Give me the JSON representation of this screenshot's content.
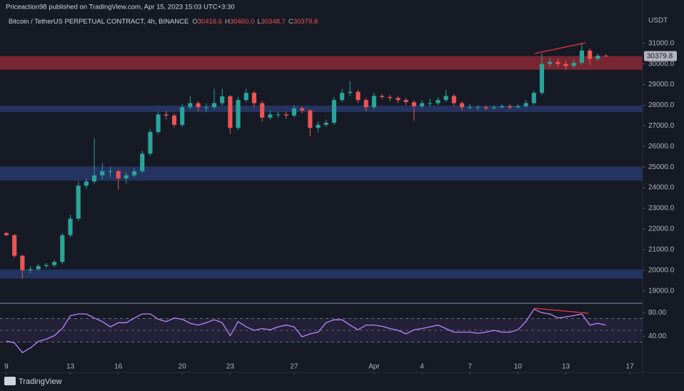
{
  "header": {
    "published": "Priceaction98 published on TradingView.com, Apr 15, 2023 15:03 UTC+3:30",
    "symbol": "Bitcoin / TetherUS PERPETUAL CONTRACT, 4h, BINANCE",
    "ohlc": [
      {
        "label": "O",
        "value": "30416.6"
      },
      {
        "label": "H",
        "value": "30460.0"
      },
      {
        "label": "L",
        "value": "30348.7"
      },
      {
        "label": "C",
        "value": "30379.8"
      }
    ]
  },
  "branding": "TradingView",
  "chart_data": [
    {
      "type": "candlestick",
      "axis_unit": "USDT",
      "up_color": "#26a69a",
      "down_color": "#ef5350",
      "xlim": [
        -0.4,
        39.8
      ],
      "xticks": [
        {
          "value": 0,
          "label": "9"
        },
        {
          "value": 4,
          "label": "13"
        },
        {
          "value": 7,
          "label": "16"
        },
        {
          "value": 11,
          "label": "20"
        },
        {
          "value": 14,
          "label": "23"
        },
        {
          "value": 18,
          "label": "27"
        },
        {
          "value": 23,
          "label": "Apr"
        },
        {
          "value": 26,
          "label": "4"
        },
        {
          "value": 29,
          "label": "7"
        },
        {
          "value": 32,
          "label": "10"
        },
        {
          "value": 35,
          "label": "13"
        },
        {
          "value": 39,
          "label": "17"
        }
      ],
      "ylim": [
        18400,
        33100
      ],
      "yticks": [
        {
          "value": 19000,
          "label": "19000.0"
        },
        {
          "value": 20000,
          "label": "20000.0"
        },
        {
          "value": 21000,
          "label": "21000.0"
        },
        {
          "value": 22000,
          "label": "22000.0"
        },
        {
          "value": 23000,
          "label": "23000.0"
        },
        {
          "value": 24000,
          "label": "24000.0"
        },
        {
          "value": 25000,
          "label": "25000.0"
        },
        {
          "value": 26000,
          "label": "26000.0"
        },
        {
          "value": 27000,
          "label": "27000.0"
        },
        {
          "value": 28000,
          "label": "28000.0"
        },
        {
          "value": 29000,
          "label": "29000.0"
        },
        {
          "value": 30000,
          "label": "30000.0"
        },
        {
          "value": 31000,
          "label": "31000.0"
        }
      ],
      "last_price": 30379.8,
      "zones": [
        {
          "low": 29720,
          "high": 30380,
          "color": "#8a2a35"
        },
        {
          "low": 27670,
          "high": 27980,
          "color": "#27386a"
        },
        {
          "low": 24340,
          "high": 25030,
          "color": "#27386a"
        },
        {
          "low": 19590,
          "high": 20040,
          "color": "#27386a"
        }
      ],
      "x": [
        0,
        0.5,
        1,
        1.5,
        2,
        2.5,
        3,
        3.5,
        4,
        4.5,
        5,
        5.5,
        6,
        6.5,
        7,
        7.5,
        8,
        8.5,
        9,
        9.5,
        10,
        10.5,
        11,
        11.5,
        12,
        12.5,
        13,
        13.5,
        14,
        14.5,
        15,
        15.5,
        16,
        16.5,
        17,
        17.5,
        18,
        18.5,
        19,
        19.5,
        20,
        20.5,
        21,
        21.5,
        22,
        22.5,
        23,
        23.5,
        24,
        24.5,
        25,
        25.5,
        26,
        26.5,
        27,
        27.5,
        28,
        28.5,
        29,
        29.5,
        30,
        30.5,
        31,
        31.5,
        32,
        32.5,
        33,
        33.5,
        34,
        34.5,
        35,
        35.5,
        36,
        36.5,
        37,
        37.5
      ],
      "open": [
        21800,
        21700,
        20700,
        20000,
        20050,
        20200,
        20250,
        20400,
        21700,
        22500,
        24100,
        24300,
        24600,
        24800,
        24800,
        24450,
        24600,
        24800,
        25650,
        26700,
        27550,
        27500,
        27050,
        27900,
        28100,
        27900,
        27900,
        28100,
        28430,
        26900,
        28250,
        28600,
        28100,
        27400,
        27550,
        27550,
        27500,
        27850,
        27750,
        26900,
        27050,
        27150,
        28250,
        28600,
        28650,
        28250,
        27900,
        28450,
        28400,
        28350,
        28250,
        28150,
        27950,
        28100,
        28100,
        28250,
        28450,
        28100,
        27900,
        27900,
        27900,
        27850,
        27900,
        27950,
        27900,
        27950,
        28100,
        28600,
        30000,
        30100,
        30000,
        29900,
        30050,
        30650,
        30250,
        30400
      ],
      "high": [
        21850,
        21750,
        20750,
        20200,
        20300,
        20350,
        20500,
        21800,
        22700,
        24300,
        24450,
        26400,
        25200,
        25000,
        24900,
        24750,
        24950,
        25800,
        26850,
        27700,
        27750,
        27600,
        28050,
        28450,
        28200,
        28100,
        28800,
        28800,
        28500,
        28400,
        28800,
        28700,
        28200,
        27750,
        27700,
        27700,
        28000,
        27950,
        27800,
        27200,
        27300,
        28400,
        28800,
        29150,
        28750,
        28350,
        28600,
        28550,
        28500,
        28450,
        28350,
        28250,
        28250,
        28300,
        28400,
        28750,
        28550,
        28200,
        28050,
        28000,
        28000,
        28000,
        28050,
        28050,
        28050,
        28250,
        28700,
        30500,
        30300,
        30250,
        30150,
        30200,
        31000,
        30750,
        30500,
        30460
      ],
      "low": [
        21650,
        20600,
        19600,
        19850,
        19950,
        20100,
        20150,
        20300,
        21600,
        22400,
        23950,
        24200,
        24400,
        24500,
        23900,
        24200,
        24500,
        24700,
        25550,
        26600,
        27300,
        26900,
        26950,
        27800,
        27700,
        27650,
        27800,
        28000,
        26600,
        26800,
        28150,
        27900,
        27200,
        27300,
        27400,
        27350,
        27400,
        27600,
        26500,
        26700,
        26950,
        27050,
        28150,
        28450,
        28100,
        27700,
        27800,
        28300,
        28200,
        28100,
        28000,
        27250,
        27850,
        27950,
        28000,
        28150,
        27950,
        27750,
        27800,
        27750,
        27750,
        27800,
        27850,
        27800,
        27850,
        27900,
        28000,
        28500,
        29850,
        29850,
        29700,
        29800,
        29950,
        29950,
        30150,
        30350
      ],
      "close": [
        21700,
        20700,
        20000,
        20050,
        20200,
        20250,
        20400,
        21700,
        22500,
        24100,
        24300,
        24600,
        24800,
        24800,
        24450,
        24600,
        24800,
        25650,
        26700,
        27550,
        27500,
        27050,
        27900,
        28100,
        27900,
        27900,
        28100,
        28430,
        26900,
        28250,
        28600,
        28100,
        27400,
        27550,
        27550,
        27500,
        27850,
        27750,
        26900,
        27050,
        27150,
        28250,
        28600,
        28650,
        28250,
        27900,
        28450,
        28400,
        28350,
        28250,
        28150,
        27950,
        28100,
        28100,
        28250,
        28450,
        28100,
        27900,
        27900,
        27900,
        27850,
        27900,
        27950,
        27900,
        27950,
        28100,
        28600,
        30000,
        30100,
        30000,
        29900,
        30050,
        30650,
        30250,
        30400,
        30380
      ]
    },
    {
      "type": "line",
      "color": "#c084fc",
      "band_color": "#7e57c2",
      "overbought": 70,
      "oversold": 30,
      "midline": 50,
      "xlim": [
        -0.4,
        39.8
      ],
      "ylim": [
        5,
        95
      ],
      "yticks": [
        {
          "value": 80,
          "label": "80.00"
        },
        {
          "value": 40,
          "label": "40.00"
        }
      ],
      "x": [
        0,
        0.5,
        1,
        1.5,
        2,
        2.5,
        3,
        3.5,
        4,
        4.5,
        5,
        5.5,
        6,
        6.5,
        7,
        7.5,
        8,
        8.5,
        9,
        9.5,
        10,
        10.5,
        11,
        11.5,
        12,
        12.5,
        13,
        13.5,
        14,
        14.5,
        15,
        15.5,
        16,
        16.5,
        17,
        17.5,
        18,
        18.5,
        19,
        19.5,
        20,
        20.5,
        21,
        21.5,
        22,
        22.5,
        23,
        23.5,
        24,
        24.5,
        25,
        25.5,
        26,
        26.5,
        27,
        27.5,
        28,
        28.5,
        29,
        29.5,
        30,
        30.5,
        31,
        31.5,
        32,
        32.5,
        33,
        33.5,
        34,
        34.5,
        35,
        35.5,
        36,
        36.5,
        37,
        37.5
      ],
      "values": [
        31.5,
        29,
        12,
        20,
        31,
        35,
        41,
        53,
        75,
        78,
        78,
        71,
        65,
        56,
        63,
        63,
        71,
        78,
        78,
        69,
        65,
        71,
        69,
        62,
        59,
        63,
        68,
        63,
        41,
        65,
        56,
        50,
        53,
        51,
        56,
        59,
        56,
        39,
        44,
        47,
        63,
        68,
        68,
        59,
        51,
        59,
        59,
        57,
        53,
        50,
        44,
        51,
        53,
        56,
        59,
        53,
        47,
        47,
        47,
        45,
        47,
        50,
        47,
        47,
        51,
        65,
        86,
        80,
        78,
        71,
        73,
        75,
        78,
        59,
        62,
        59
      ]
    }
  ]
}
